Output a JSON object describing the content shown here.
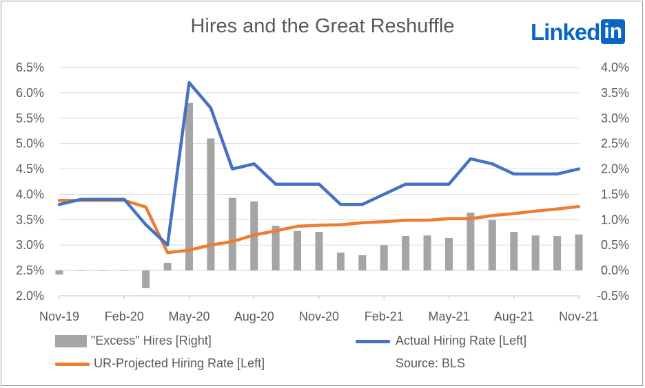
{
  "brand": {
    "text": "Linked",
    "box": "in"
  },
  "chart_data": {
    "type": "bar+line",
    "title": "Hires and the Great Reshuffle",
    "x": [
      "Nov-19",
      "Dec-19",
      "Jan-20",
      "Feb-20",
      "Mar-20",
      "Apr-20",
      "May-20",
      "Jun-20",
      "Jul-20",
      "Aug-20",
      "Sep-20",
      "Oct-20",
      "Nov-20",
      "Dec-20",
      "Jan-21",
      "Feb-21",
      "Mar-21",
      "Apr-21",
      "May-21",
      "Jun-21",
      "Jul-21",
      "Aug-21",
      "Sep-21",
      "Oct-21",
      "Nov-21"
    ],
    "x_tick_labels": [
      "Nov-19",
      "Feb-20",
      "May-20",
      "Aug-20",
      "Nov-20",
      "Feb-21",
      "May-21",
      "Aug-21",
      "Nov-21"
    ],
    "left_axis": {
      "ylim": [
        2.0,
        6.5
      ],
      "ticks": [
        "2.0%",
        "2.5%",
        "3.0%",
        "3.5%",
        "4.0%",
        "4.5%",
        "5.0%",
        "5.5%",
        "6.0%",
        "6.5%"
      ]
    },
    "right_axis": {
      "ylim": [
        -0.5,
        4.0
      ],
      "ticks": [
        "-0.5%",
        "0.0%",
        "0.5%",
        "1.0%",
        "1.5%",
        "2.0%",
        "2.5%",
        "3.0%",
        "3.5%",
        "4.0%"
      ]
    },
    "series": [
      {
        "name": "\"Excess\" Hires [Right]",
        "type": "bar",
        "axis": "right",
        "color": "#a5a5a5",
        "values": [
          -0.08,
          0.0,
          0.0,
          0.0,
          -0.35,
          0.15,
          3.3,
          2.6,
          1.43,
          1.36,
          0.88,
          0.78,
          0.76,
          0.35,
          0.3,
          0.5,
          0.68,
          0.69,
          0.64,
          1.14,
          0.99,
          0.76,
          0.69,
          0.68,
          0.71
        ]
      },
      {
        "name": "Actual Hiring Rate [Left]",
        "type": "line",
        "axis": "left",
        "color": "#4472c4",
        "values": [
          3.8,
          3.9,
          3.9,
          3.9,
          3.4,
          3.0,
          6.2,
          5.7,
          4.5,
          4.6,
          4.2,
          4.2,
          4.2,
          3.8,
          3.8,
          4.0,
          4.2,
          4.2,
          4.2,
          4.7,
          4.6,
          4.4,
          4.4,
          4.4,
          4.5
        ]
      },
      {
        "name": "UR-Projected Hiring Rate [Left]",
        "type": "line",
        "axis": "left",
        "color": "#ed7d31",
        "values": [
          3.88,
          3.88,
          3.88,
          3.88,
          3.75,
          2.85,
          2.9,
          3.0,
          3.07,
          3.2,
          3.28,
          3.37,
          3.39,
          3.4,
          3.44,
          3.46,
          3.49,
          3.49,
          3.52,
          3.52,
          3.58,
          3.62,
          3.67,
          3.71,
          3.76
        ]
      }
    ],
    "legend": {
      "placement": "bottom",
      "source_text": "Source: BLS"
    }
  }
}
